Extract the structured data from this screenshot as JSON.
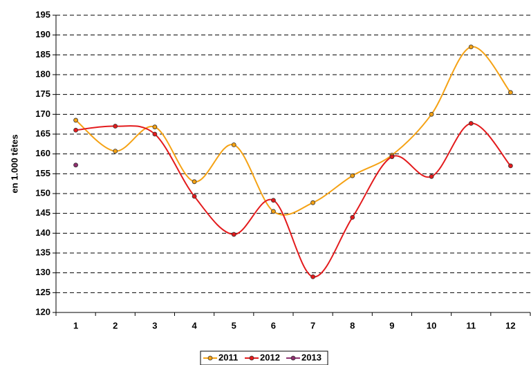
{
  "chart_data": {
    "type": "line",
    "y_label": "en 1.000 têtes",
    "categories": [
      "1",
      "2",
      "3",
      "4",
      "5",
      "6",
      "7",
      "8",
      "9",
      "10",
      "11",
      "12"
    ],
    "series": [
      {
        "name": "2011",
        "color": "#f5a214",
        "values": [
          168.5,
          160.7,
          166.8,
          153,
          162.3,
          145.5,
          147.7,
          154.5,
          159.7,
          170,
          187,
          175.5
        ]
      },
      {
        "name": "2012",
        "color": "#e31a1c",
        "values": [
          166,
          167,
          165,
          149.3,
          139.7,
          148.3,
          129,
          144,
          159.3,
          154.3,
          167.7,
          157
        ]
      },
      {
        "name": "2013",
        "color": "#8e2f6e",
        "values": [
          157.2,
          null,
          null,
          null,
          null,
          null,
          null,
          null,
          null,
          null,
          null,
          null
        ]
      }
    ],
    "ylim": [
      120,
      195
    ],
    "yticks": [
      120,
      125,
      130,
      135,
      140,
      145,
      150,
      155,
      160,
      165,
      170,
      175,
      180,
      185,
      190,
      195
    ],
    "grid": true,
    "legend": "bottom"
  }
}
